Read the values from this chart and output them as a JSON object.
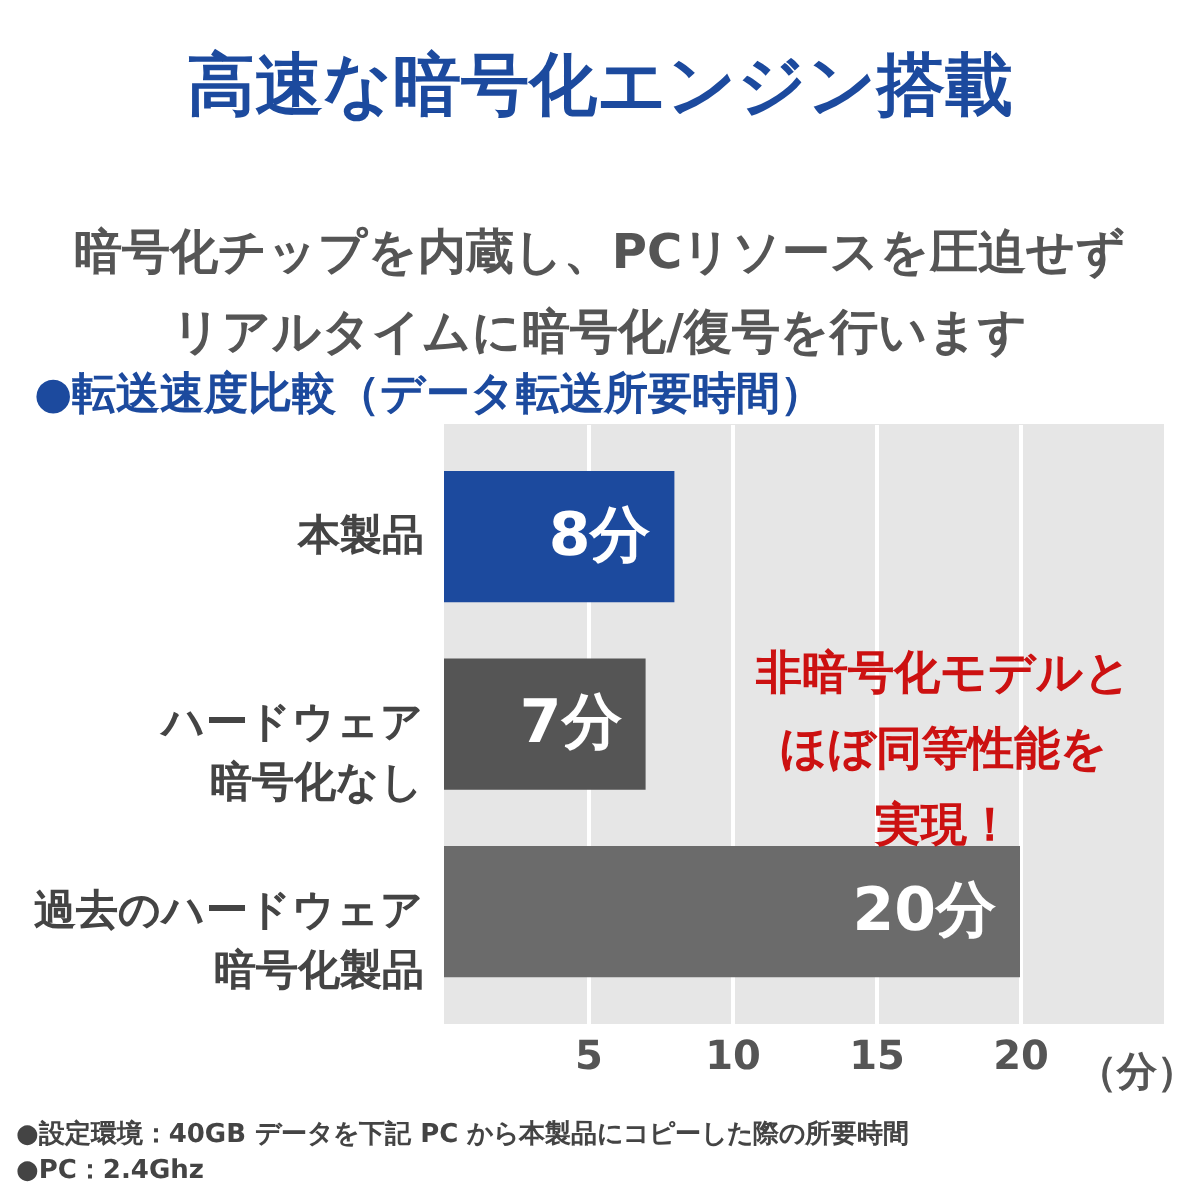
{
  "chart_data": {
    "type": "bar",
    "orientation": "horizontal",
    "title": "高速な暗号化エンジン搭載",
    "subtitle": "暗号化チップを内蔵し、PCリソースを圧迫せずリアルタイムに暗号化/復号を行います",
    "categories": [
      "本製品",
      "ハードウェア暗号化なし",
      "過去のハードウェア暗号化製品"
    ],
    "values": [
      8,
      7,
      20
    ],
    "colors": [
      "#1c4a9e",
      "#555555",
      "#6b6b6b"
    ],
    "value_labels": [
      "8分",
      "7分",
      "20分"
    ],
    "xlabel": "（分）",
    "xlim": [
      0,
      25
    ],
    "xticks": [
      5,
      10,
      15,
      20
    ],
    "grid": "x",
    "annotations": [
      "●転送速度比較（データ転送所要時間）",
      "非暗号化モデルとほぼ同等性能を実現！",
      "●設定環境：40GB データを下記 PC から本製品にコピーした際の所要時間",
      "●PC：2.4Ghz"
    ]
  }
}
